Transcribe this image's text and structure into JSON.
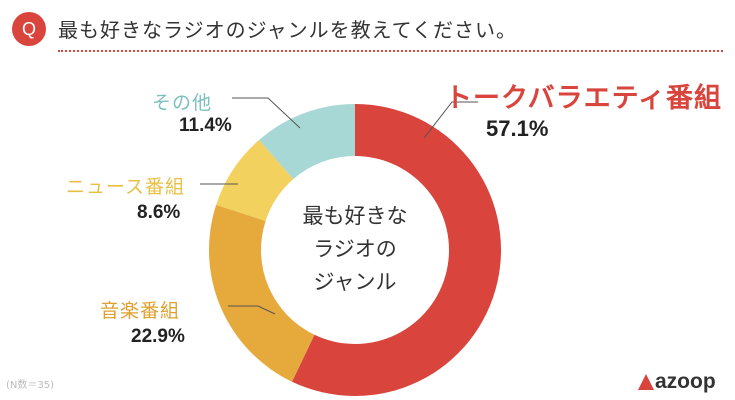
{
  "header": {
    "badge": "Q",
    "question": "最も好きなラジオのジャンルを教えてください。"
  },
  "chart_data": {
    "type": "pie",
    "donut": true,
    "categories": [
      "トークバラエティ番組",
      "音楽番組",
      "ニュース番組",
      "その他"
    ],
    "values": [
      57.1,
      22.9,
      8.6,
      11.4
    ],
    "value_labels": [
      "57.1%",
      "22.9%",
      "8.6%",
      "11.4%"
    ],
    "colors": [
      "#d9443c",
      "#e6a93b",
      "#f2d15e",
      "#a8d8d5"
    ],
    "center_label": [
      "最も好きな",
      "ラジオの",
      "ジャンル"
    ],
    "start": "12 o'clock",
    "direction": "clockwise"
  },
  "footer": {
    "sample": "(N数＝35)"
  },
  "logo": {
    "text": "azoop",
    "color": "#d9443c"
  }
}
